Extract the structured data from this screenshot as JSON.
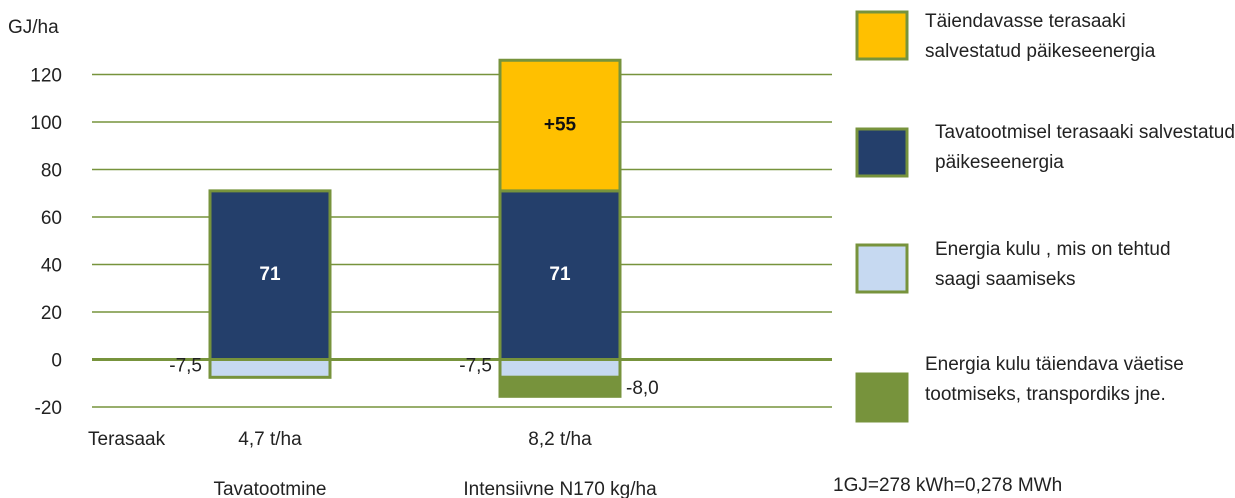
{
  "chart_data": {
    "type": "bar",
    "stacked": true,
    "ylabel": "GJ/ha",
    "categories": [
      "Tavatootmine",
      "Intensiivne N170 kg/ha"
    ],
    "row_label": "Terasaak",
    "yields": [
      "4,7 t/ha",
      "8,2 t/ha"
    ],
    "note": "1GJ=278 kWh=0,278 MWh",
    "series": [
      {
        "name": "Täiendavasse terasaaki salvestatud päikeseenergia",
        "color": "#ffc000",
        "values": [
          null,
          55
        ],
        "value_labels": [
          null,
          "+55"
        ]
      },
      {
        "name": "Tavatootmisel terasaaki salvestatud päikeseenergia",
        "color": "#243f6b",
        "values": [
          71,
          71
        ]
      },
      {
        "name": "Energia kulu , mis on tehtud saagi saamiseks",
        "color": "#c6d9f1",
        "values": [
          -7.5,
          -7.5
        ],
        "value_labels": [
          "-7,5",
          "-7,5"
        ]
      },
      {
        "name": "Energia kulu täiendava väetise tootmiseks, transpordiks jne.",
        "color": "#77933c",
        "values": [
          null,
          -8.0
        ],
        "value_labels": [
          null,
          "-8,0"
        ]
      }
    ],
    "ylim": [
      -20,
      130
    ],
    "yticks": [
      -20,
      0,
      20,
      40,
      60,
      80,
      100,
      120
    ],
    "grid": true
  }
}
